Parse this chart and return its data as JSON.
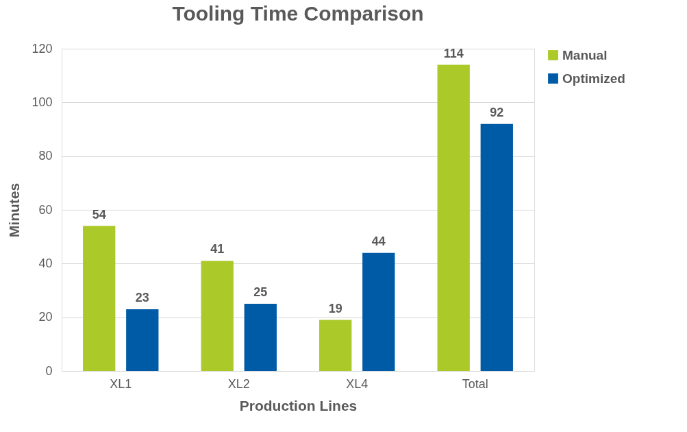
{
  "chart_data": {
    "type": "bar",
    "title": "Tooling Time Comparison",
    "xlabel": "Production Lines",
    "ylabel": "Minutes",
    "categories": [
      "XL1",
      "XL2",
      "XL4",
      "Total"
    ],
    "series": [
      {
        "name": "Manual",
        "color": "#acc92a",
        "values": [
          54,
          41,
          19,
          114
        ]
      },
      {
        "name": "Optimized",
        "color": "#005ba6",
        "values": [
          23,
          25,
          44,
          92
        ]
      }
    ],
    "ylim": [
      0,
      120
    ],
    "yticks": [
      0,
      20,
      40,
      60,
      80,
      100,
      120
    ],
    "grid": "y",
    "legend": "right",
    "data_labels": true
  }
}
